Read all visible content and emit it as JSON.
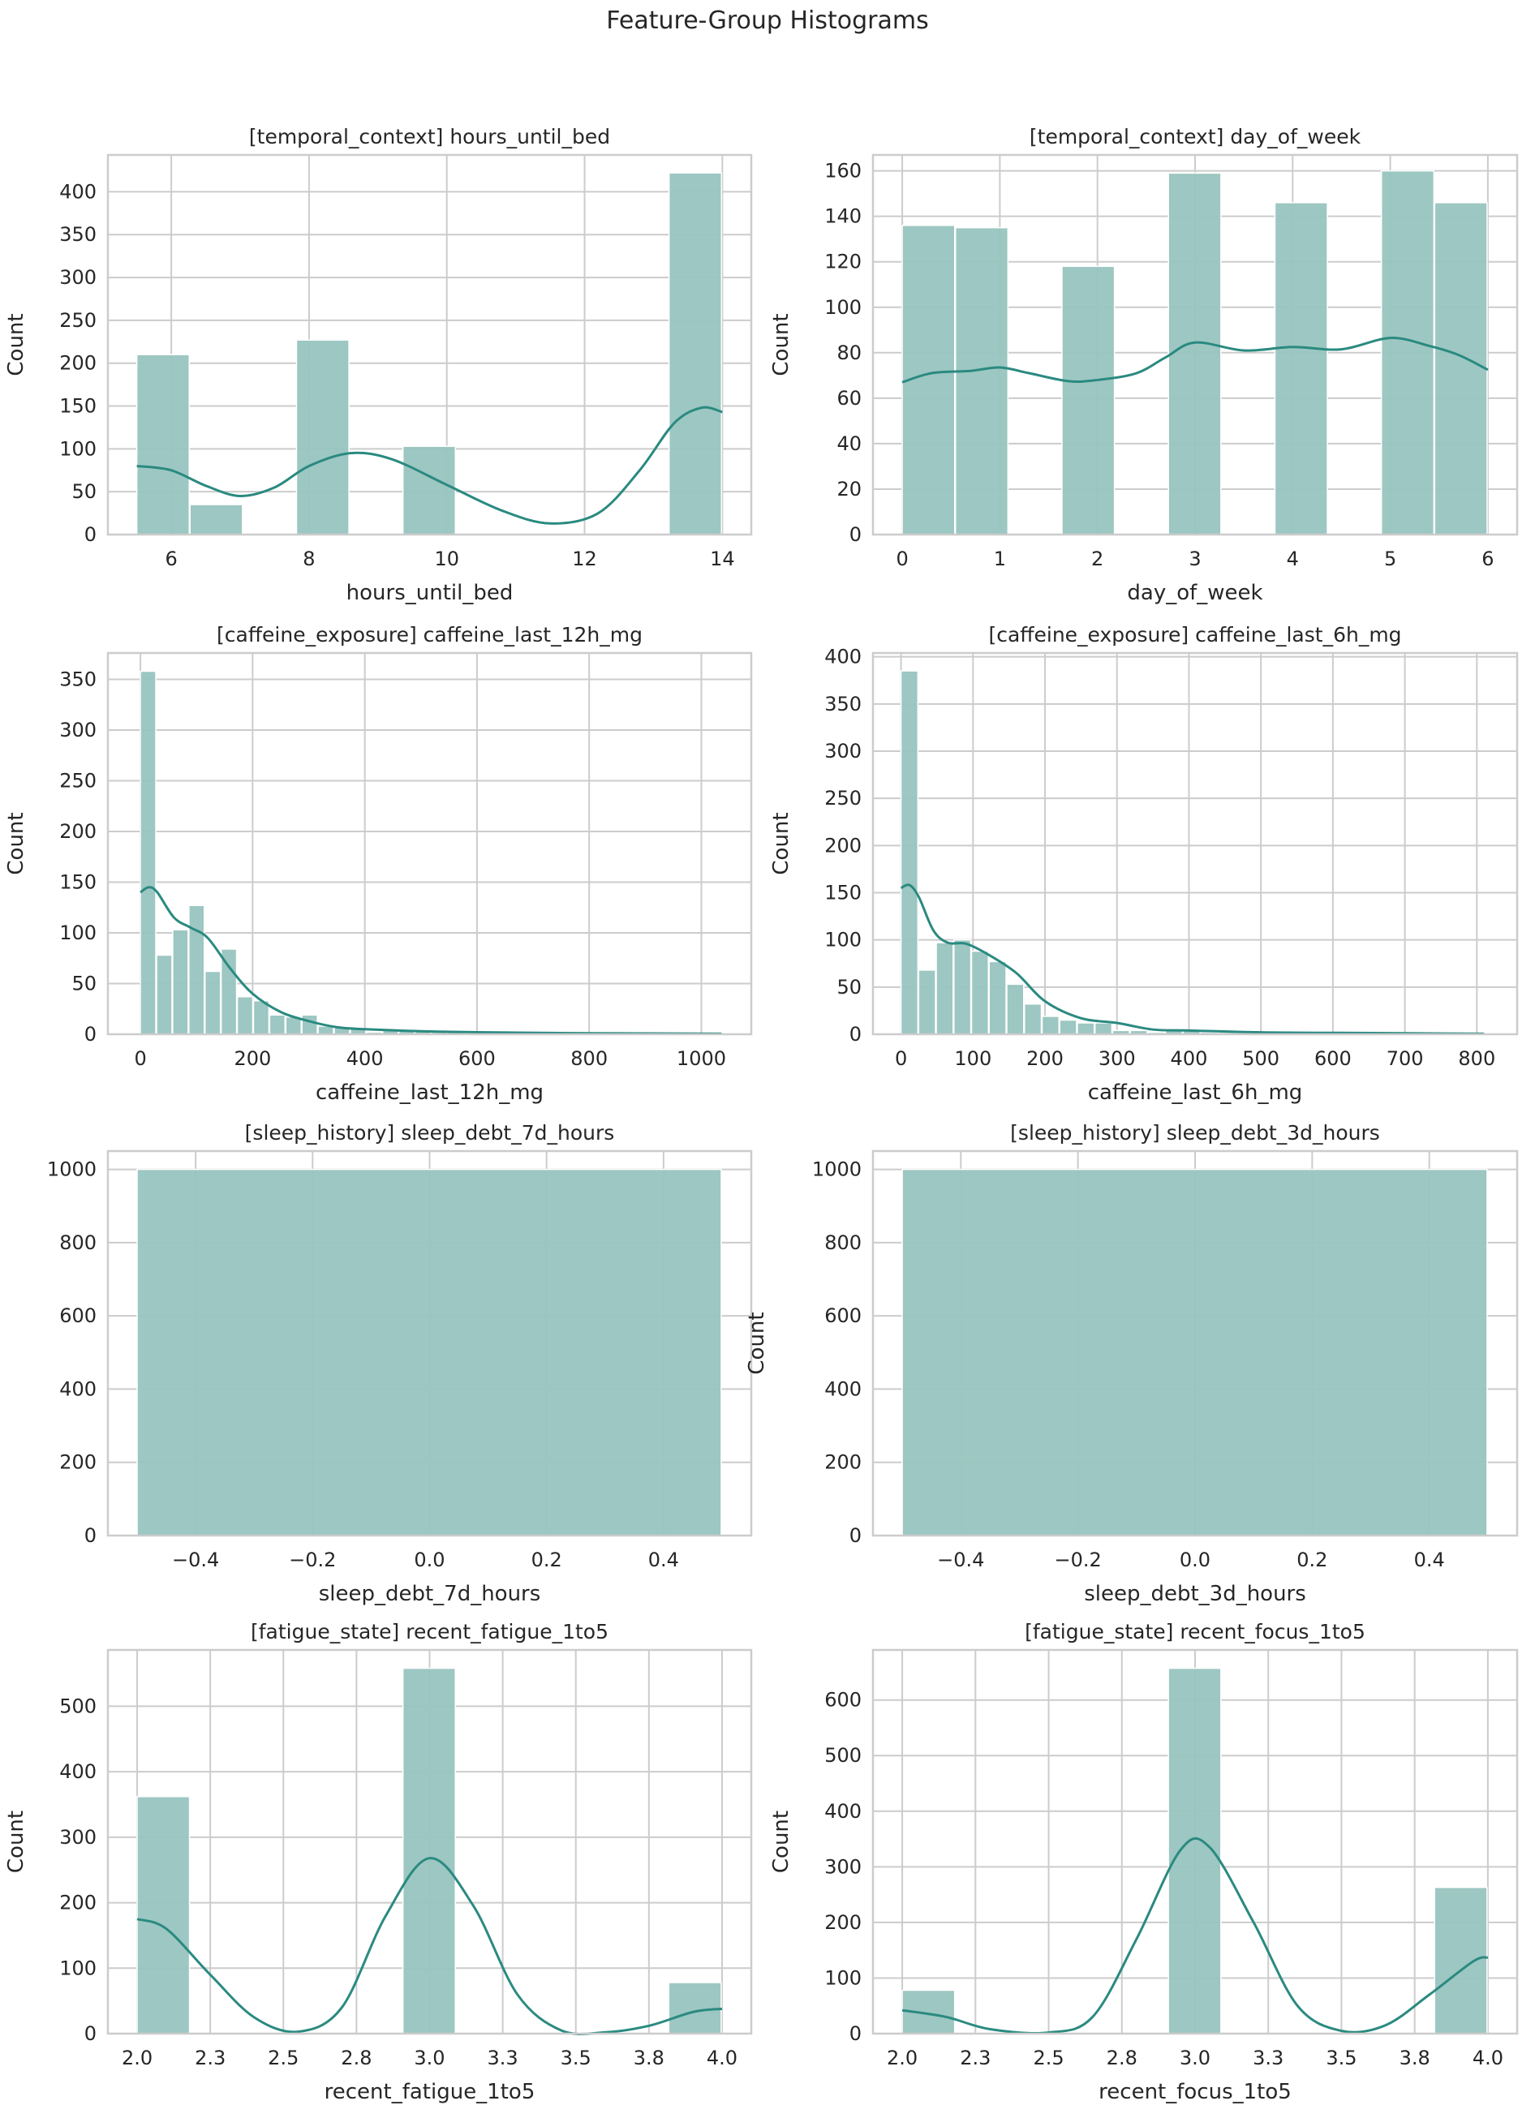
{
  "title": "Feature-Group Histograms",
  "colors": {
    "bar": "#98c4bf",
    "kde": "#2a8a80",
    "grid": "#cccccc",
    "axes": "#cccccc"
  },
  "chart_data": [
    {
      "type": "bar",
      "title": "[temporal_context] hours_until_bed",
      "xlabel": "hours_until_bed",
      "ylabel": "Count",
      "xlim": [
        5.08,
        14.42
      ],
      "ylim": [
        0,
        443
      ],
      "xticks": [
        6,
        8,
        10,
        12,
        14
      ],
      "yticks": [
        0,
        50,
        100,
        150,
        200,
        250,
        300,
        350,
        400
      ],
      "bin_start": 5.5,
      "bin_width": 0.7727,
      "values": [
        210,
        35,
        0,
        227,
        0,
        103,
        0,
        0,
        0,
        0,
        422
      ],
      "kde": [
        [
          5.5,
          80
        ],
        [
          6,
          75
        ],
        [
          6.5,
          57
        ],
        [
          7,
          45
        ],
        [
          7.5,
          55
        ],
        [
          8,
          80
        ],
        [
          8.6,
          95
        ],
        [
          9.2,
          88
        ],
        [
          10,
          58
        ],
        [
          10.8,
          28
        ],
        [
          11.5,
          13
        ],
        [
          12.2,
          25
        ],
        [
          12.8,
          75
        ],
        [
          13.3,
          130
        ],
        [
          13.7,
          148
        ],
        [
          14,
          143
        ]
      ],
      "grid": true
    },
    {
      "type": "bar",
      "title": "[temporal_context] day_of_week",
      "xlabel": "day_of_week",
      "ylabel": "Count",
      "xlim": [
        -0.3,
        6.3
      ],
      "ylim": [
        0,
        167
      ],
      "xticks": [
        0,
        1,
        2,
        3,
        4,
        5,
        6
      ],
      "yticks": [
        0,
        20,
        40,
        60,
        80,
        100,
        120,
        140,
        160
      ],
      "bin_start": 0,
      "bin_width": 0.5455,
      "values": [
        136,
        135,
        0,
        118,
        0,
        159,
        0,
        146,
        0,
        160,
        146
      ],
      "kde": [
        [
          0,
          67
        ],
        [
          0.3,
          71
        ],
        [
          0.7,
          72
        ],
        [
          1,
          73.5
        ],
        [
          1.3,
          71
        ],
        [
          1.7,
          67.5
        ],
        [
          2,
          68
        ],
        [
          2.4,
          71
        ],
        [
          2.7,
          78
        ],
        [
          3,
          84.5
        ],
        [
          3.5,
          81
        ],
        [
          4,
          82.5
        ],
        [
          4.5,
          81.5
        ],
        [
          5,
          86.5
        ],
        [
          5.4,
          83
        ],
        [
          5.7,
          79
        ],
        [
          6,
          72.5
        ]
      ],
      "grid": true
    },
    {
      "type": "bar",
      "title": "[caffeine_exposure] caffeine_last_12h_mg",
      "xlabel": "caffeine_last_12h_mg",
      "ylabel": "Count",
      "xlim": [
        -58,
        1089
      ],
      "ylim": [
        0,
        376
      ],
      "xticks": [
        0,
        200,
        400,
        600,
        800,
        1000
      ],
      "yticks": [
        0,
        50,
        100,
        150,
        200,
        250,
        300,
        350
      ],
      "bin_start": 0,
      "bin_width": 28.8,
      "values": [
        358,
        78,
        103,
        127,
        62,
        84,
        37,
        33,
        19,
        17,
        19,
        8,
        7,
        5,
        2,
        5,
        4,
        3,
        2,
        2,
        1,
        1,
        1,
        1,
        0,
        1,
        1,
        0,
        1,
        0,
        0,
        0,
        1,
        0,
        0,
        1
      ],
      "kde": [
        [
          0,
          140
        ],
        [
          15,
          145
        ],
        [
          30,
          140
        ],
        [
          60,
          115
        ],
        [
          90,
          105
        ],
        [
          120,
          95
        ],
        [
          160,
          65
        ],
        [
          200,
          40
        ],
        [
          250,
          22
        ],
        [
          300,
          13
        ],
        [
          350,
          7
        ],
        [
          400,
          5
        ],
        [
          500,
          3
        ],
        [
          600,
          2
        ],
        [
          800,
          1
        ],
        [
          1036,
          0.5
        ]
      ],
      "grid": true
    },
    {
      "type": "bar",
      "title": "[caffeine_exposure] caffeine_last_6h_mg",
      "xlabel": "caffeine_last_6h_mg",
      "ylabel": "Count",
      "xlim": [
        -39,
        856
      ],
      "ylim": [
        0,
        404
      ],
      "xticks": [
        0,
        100,
        200,
        300,
        400,
        500,
        600,
        700,
        800
      ],
      "yticks": [
        0,
        50,
        100,
        150,
        200,
        250,
        300,
        350,
        400
      ],
      "bin_start": 0,
      "bin_width": 24.5,
      "values": [
        385,
        68,
        97,
        100,
        88,
        77,
        53,
        32,
        19,
        15,
        12,
        12,
        4,
        4,
        2,
        5,
        4,
        2,
        2,
        1,
        2,
        1,
        1,
        1,
        1,
        1,
        0,
        0,
        1,
        0,
        0,
        0,
        1
      ],
      "kde": [
        [
          0,
          155
        ],
        [
          12,
          158
        ],
        [
          25,
          145
        ],
        [
          45,
          110
        ],
        [
          65,
          97
        ],
        [
          90,
          96
        ],
        [
          120,
          85
        ],
        [
          160,
          65
        ],
        [
          200,
          35
        ],
        [
          250,
          17
        ],
        [
          300,
          12
        ],
        [
          350,
          5
        ],
        [
          400,
          4
        ],
        [
          500,
          2
        ],
        [
          600,
          1.5
        ],
        [
          810,
          0.5
        ]
      ],
      "grid": true
    },
    {
      "type": "bar",
      "title": "[sleep_history] sleep_debt_7d_hours",
      "xlabel": "sleep_debt_7d_hours",
      "ylabel": "Count",
      "xlim": [
        -0.55,
        0.55
      ],
      "ylim": [
        0,
        1050
      ],
      "xticks": [
        -0.4,
        -0.2,
        0.0,
        0.2,
        0.4
      ],
      "yticks": [
        0,
        200,
        400,
        600,
        800,
        1000
      ],
      "bin_start": -0.5,
      "bin_width": 1.0,
      "values": [
        1000
      ],
      "kde": [],
      "grid": true
    },
    {
      "type": "bar",
      "title": "[sleep_history] sleep_debt_3d_hours",
      "xlabel": "sleep_debt_3d_hours",
      "ylabel": "Count",
      "xlim": [
        -0.55,
        0.55
      ],
      "ylim": [
        0,
        1050
      ],
      "xticks": [
        -0.4,
        -0.2,
        0.0,
        0.2,
        0.4
      ],
      "yticks": [
        0,
        200,
        400,
        600,
        800,
        1000
      ],
      "bin_start": -0.5,
      "bin_width": 1.0,
      "values": [
        1000
      ],
      "kde": [],
      "grid": true
    },
    {
      "type": "bar",
      "title": "[fatigue_state] recent_fatigue_1to5",
      "xlabel": "recent_fatigue_1to5",
      "ylabel": "Count",
      "xlim": [
        1.9,
        4.1
      ],
      "ylim": [
        0,
        586
      ],
      "xticks": [
        2.0,
        2.25,
        2.5,
        2.75,
        3.0,
        3.25,
        3.5,
        3.75,
        4.0
      ],
      "yticks": [
        0,
        100,
        200,
        300,
        400,
        500
      ],
      "bin_start": 2.0,
      "bin_width": 0.1818,
      "values": [
        362,
        0,
        0,
        0,
        0,
        558,
        0,
        0,
        0,
        0,
        78
      ],
      "bin_offset_center": true,
      "kde": [
        [
          2,
          175
        ],
        [
          2.1,
          160
        ],
        [
          2.25,
          90
        ],
        [
          2.4,
          25
        ],
        [
          2.55,
          3
        ],
        [
          2.7,
          40
        ],
        [
          2.85,
          180
        ],
        [
          3.0,
          268
        ],
        [
          3.15,
          195
        ],
        [
          3.3,
          60
        ],
        [
          3.45,
          5
        ],
        [
          3.6,
          2
        ],
        [
          3.75,
          12
        ],
        [
          3.9,
          33
        ],
        [
          4,
          38
        ]
      ],
      "grid": true
    },
    {
      "type": "bar",
      "title": "[fatigue_state] recent_focus_1to5",
      "xlabel": "recent_focus_1to5",
      "ylabel": "Count",
      "xlim": [
        1.9,
        4.1
      ],
      "ylim": [
        0,
        690
      ],
      "xticks": [
        2.0,
        2.25,
        2.5,
        2.75,
        3.0,
        3.25,
        3.5,
        3.75,
        4.0
      ],
      "yticks": [
        0,
        100,
        200,
        300,
        400,
        500,
        600
      ],
      "bin_start": 2.0,
      "bin_width": 0.1818,
      "values": [
        78,
        0,
        0,
        0,
        0,
        657,
        0,
        0,
        0,
        0,
        263
      ],
      "kde": [
        [
          2,
          42
        ],
        [
          2.15,
          30
        ],
        [
          2.3,
          8
        ],
        [
          2.5,
          2
        ],
        [
          2.65,
          30
        ],
        [
          2.8,
          170
        ],
        [
          2.95,
          330
        ],
        [
          3.05,
          335
        ],
        [
          3.2,
          200
        ],
        [
          3.35,
          50
        ],
        [
          3.5,
          5
        ],
        [
          3.65,
          15
        ],
        [
          3.8,
          70
        ],
        [
          3.95,
          130
        ],
        [
          4,
          137
        ]
      ],
      "grid": true
    }
  ]
}
